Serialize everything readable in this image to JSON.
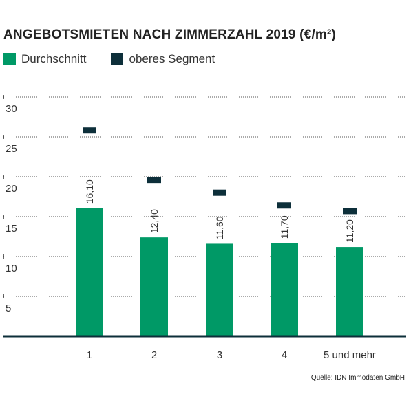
{
  "chart_data": {
    "type": "bar",
    "title": "ANGEBOTSMIETEN NACH ZIMMERZAHL 2019 (€/m²)",
    "categories": [
      "1",
      "2",
      "3",
      "4",
      "5 und mehr"
    ],
    "series": [
      {
        "name": "Durchschnitt",
        "values": [
          16.1,
          12.4,
          11.6,
          11.7,
          11.2
        ],
        "labels": [
          "16,10",
          "12,40",
          "11,60",
          "11,70",
          "11,20"
        ],
        "color": "#009966"
      },
      {
        "name": "oberes Segment",
        "values": [
          25.8,
          19.6,
          18.0,
          16.4,
          15.7
        ],
        "color": "#0d2f3a"
      }
    ],
    "yticks": [
      5,
      10,
      15,
      20,
      25,
      30
    ],
    "ylim": [
      0,
      30
    ],
    "grid": true,
    "legend": "top-left",
    "source": "Quelle: IDN Immodaten GmbH"
  }
}
